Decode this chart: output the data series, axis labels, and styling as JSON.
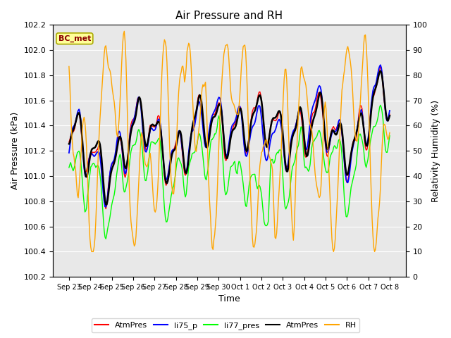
{
  "title": "Air Pressure and RH",
  "xlabel": "Time",
  "ylabel_left": "Air Pressure (kPa)",
  "ylabel_right": "Relativity Humidity (%)",
  "annotation": "BC_met",
  "ylim_left": [
    100.2,
    102.2
  ],
  "ylim_right": [
    0,
    100
  ],
  "yticks_left": [
    100.2,
    100.4,
    100.6,
    100.8,
    101.0,
    101.2,
    101.4,
    101.6,
    101.8,
    102.0,
    102.2
  ],
  "yticks_right": [
    0,
    10,
    20,
    30,
    40,
    50,
    60,
    70,
    80,
    90,
    100
  ],
  "xtick_labels": [
    "Sep 23",
    "Sep 24",
    "Sep 25",
    "Sep 26",
    "Sep 27",
    "Sep 28",
    "Sep 29",
    "Sep 30",
    "Oct 1",
    "Oct 2",
    "Oct 3",
    "Oct 4",
    "Oct 5",
    "Oct 6",
    "Oct 7",
    "Oct 8"
  ],
  "background_color": "#e8e8e8",
  "figure_bg": "#ffffff"
}
